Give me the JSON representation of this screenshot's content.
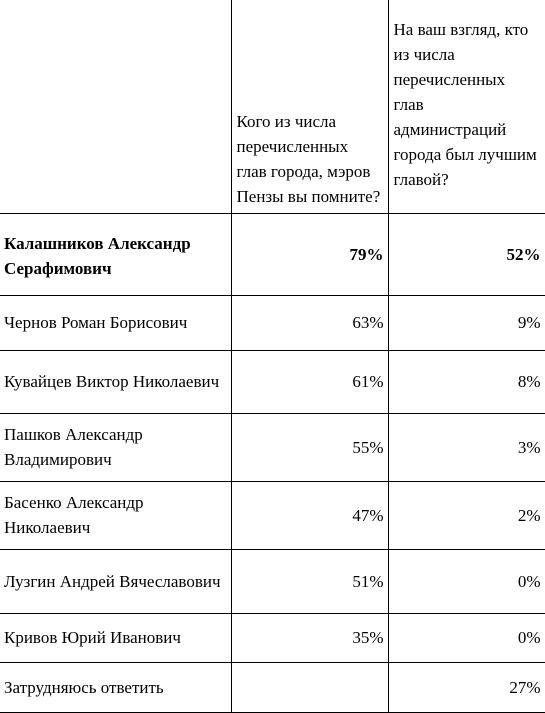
{
  "table": {
    "questions": {
      "remember": "Кого из числа перечисленных глав города, мэров Пензы вы помните?",
      "best": "На ваш взгляд, кто из числа перечисленных глав администраций города был лучшим главой?"
    },
    "rows": [
      {
        "name": "Калашников Александр Серафимович",
        "remember": "79%",
        "best": "52%",
        "bold": true
      },
      {
        "name": "Чернов Роман Борисович",
        "remember": "63%",
        "best": "9%"
      },
      {
        "name": "Кувайцев Виктор Николаевич",
        "remember": "61%",
        "best": "8%"
      },
      {
        "name": "Пашков Александр Владимирович",
        "remember": "55%",
        "best": "3%"
      },
      {
        "name": "Басенко Александр Николаевич",
        "remember": "47%",
        "best": "2%"
      },
      {
        "name": "Лузгин Андрей Вячеславович",
        "remember": "51%",
        "best": "0%"
      },
      {
        "name": "Кривов Юрий Иванович",
        "remember": "35%",
        "best": "0%"
      },
      {
        "name": "Затрудняюсь ответить",
        "remember": "",
        "best": "27%"
      }
    ]
  }
}
